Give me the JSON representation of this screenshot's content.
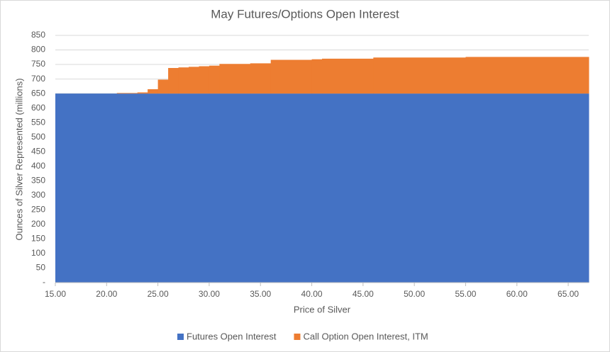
{
  "chart_data": {
    "type": "step-area",
    "title": "May Futures/Options Open Interest",
    "x_label": "Price of Silver",
    "y_label": "Ounces of Silver Represented (millions)",
    "x": [
      15,
      21,
      23,
      24,
      25,
      26,
      27,
      28,
      29,
      30,
      31,
      34,
      36,
      40,
      41,
      46,
      55
    ],
    "series": [
      {
        "name": "Futures Open Interest",
        "color": "#4472c4",
        "values": [
          650,
          650,
          650,
          650,
          650,
          650,
          650,
          650,
          650,
          650,
          650,
          650,
          650,
          650,
          650,
          650,
          650
        ]
      },
      {
        "name": "Call Option Open Interest, ITM",
        "color": "#ed7d31",
        "values": [
          0,
          2,
          4,
          15,
          48,
          88,
          90,
          92,
          94,
          96,
          102,
          104,
          116,
          118,
          120,
          124,
          126
        ]
      }
    ],
    "xlim": [
      15,
      67
    ],
    "xticks": [
      {
        "value": 15,
        "label": "15.00"
      },
      {
        "value": 20,
        "label": "20.00"
      },
      {
        "value": 25,
        "label": "25.00"
      },
      {
        "value": 30,
        "label": "30.00"
      },
      {
        "value": 35,
        "label": "35.00"
      },
      {
        "value": 40,
        "label": "40.00"
      },
      {
        "value": 45,
        "label": "45.00"
      },
      {
        "value": 50,
        "label": "50.00"
      },
      {
        "value": 55,
        "label": "55.00"
      },
      {
        "value": 60,
        "label": "60.00"
      },
      {
        "value": 65,
        "label": "65.00"
      }
    ],
    "ylim": [
      0,
      850
    ],
    "yticks": [
      {
        "value": 0,
        "label": "-"
      },
      50,
      100,
      150,
      200,
      250,
      300,
      350,
      400,
      450,
      500,
      550,
      600,
      650,
      700,
      750,
      800,
      850
    ],
    "grid": true,
    "legend": "bottom"
  }
}
